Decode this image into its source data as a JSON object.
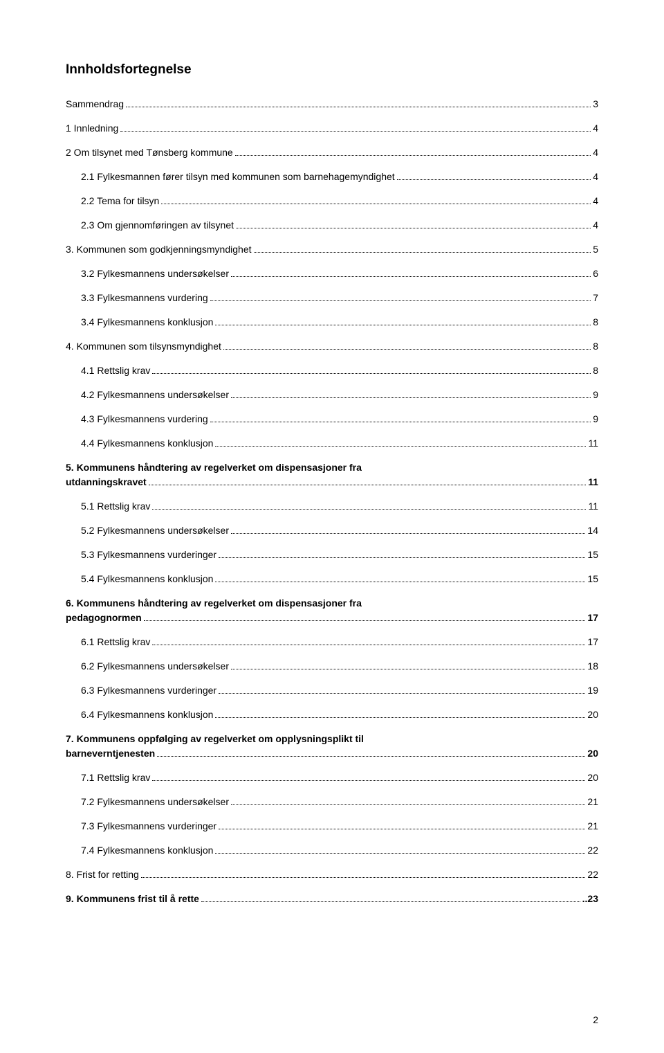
{
  "document": {
    "title": "Innholdsfortegnelse",
    "page_number": "2",
    "colors": {
      "background": "#ffffff",
      "text": "#000000",
      "dots": "#000000"
    },
    "typography": {
      "title_fontsize_pt": 14,
      "body_fontsize_pt": 11,
      "font_family": "Verdana"
    }
  },
  "toc": [
    {
      "label": "Sammendrag",
      "page": "3",
      "bold": false,
      "indent": 0
    },
    {
      "label": "1 Innledning",
      "page": "4",
      "bold": false,
      "indent": 0
    },
    {
      "label": "2 Om tilsynet med Tønsberg kommune",
      "page": "4",
      "bold": false,
      "indent": 0
    },
    {
      "label": "2.1 Fylkesmannen fører tilsyn med kommunen som barnehagemyndighet",
      "page": "4",
      "bold": false,
      "indent": 1
    },
    {
      "label": "2.2 Tema for tilsyn",
      "page": "4",
      "bold": false,
      "indent": 1
    },
    {
      "label": "2.3 Om gjennomføringen av tilsynet",
      "page": "4",
      "bold": false,
      "indent": 1
    },
    {
      "label": "3. Kommunen som godkjenningsmyndighet",
      "page": "5",
      "bold": false,
      "indent": 0
    },
    {
      "label": "3.2 Fylkesmannens undersøkelser",
      "page": "6",
      "bold": false,
      "indent": 1
    },
    {
      "label": "3.3 Fylkesmannens vurdering",
      "page": "7",
      "bold": false,
      "indent": 1
    },
    {
      "label": "3.4 Fylkesmannens konklusjon",
      "page": "8",
      "bold": false,
      "indent": 1
    },
    {
      "label": "4. Kommunen som tilsynsmyndighet",
      "page": "8",
      "bold": false,
      "indent": 0
    },
    {
      "label": "4.1 Rettslig krav",
      "page": "8",
      "bold": false,
      "indent": 1
    },
    {
      "label": "4.2 Fylkesmannens undersøkelser",
      "page": "9",
      "bold": false,
      "indent": 1
    },
    {
      "label": "4.3 Fylkesmannens vurdering",
      "page": "9",
      "bold": false,
      "indent": 1
    },
    {
      "label": "4.4 Fylkesmannens konklusjon",
      "page": "11",
      "bold": false,
      "indent": 1
    },
    {
      "label": "5. Kommunens håndtering av regelverket om dispensasjoner fra",
      "label2": "utdanningskravet",
      "page": "11",
      "bold": true,
      "indent": 0,
      "multiline": true
    },
    {
      "label": "5.1 Rettslig krav",
      "page": "11",
      "bold": false,
      "indent": 1
    },
    {
      "label": "5.2 Fylkesmannens undersøkelser",
      "page": "14",
      "bold": false,
      "indent": 1
    },
    {
      "label": "5.3 Fylkesmannens vurderinger",
      "page": "15",
      "bold": false,
      "indent": 1
    },
    {
      "label": "5.4 Fylkesmannens konklusjon",
      "page": "15",
      "bold": false,
      "indent": 1
    },
    {
      "label": "6. Kommunens håndtering av regelverket om dispensasjoner fra",
      "label2": "pedagognormen",
      "page": "17",
      "bold": true,
      "indent": 0,
      "multiline": true
    },
    {
      "label": "6.1 Rettslig krav",
      "page": "17",
      "bold": false,
      "indent": 1
    },
    {
      "label": "6.2 Fylkesmannens undersøkelser",
      "page": "18",
      "bold": false,
      "indent": 1
    },
    {
      "label": "6.3 Fylkesmannens vurderinger",
      "page": "19",
      "bold": false,
      "indent": 1
    },
    {
      "label": "6.4 Fylkesmannens konklusjon",
      "page": "20",
      "bold": false,
      "indent": 1
    },
    {
      "label": "7. Kommunens oppfølging av regelverket om opplysningsplikt til",
      "label2": "barneverntjenesten",
      "page": "20",
      "bold": true,
      "indent": 0,
      "multiline": true
    },
    {
      "label": "7.1 Rettslig krav",
      "page": "20",
      "bold": false,
      "indent": 1
    },
    {
      "label": "7.2 Fylkesmannens undersøkelser",
      "page": "21",
      "bold": false,
      "indent": 1
    },
    {
      "label": "7.3 Fylkesmannens vurderinger",
      "page": "21",
      "bold": false,
      "indent": 1
    },
    {
      "label": "7.4 Fylkesmannens konklusjon",
      "page": "22",
      "bold": false,
      "indent": 1
    },
    {
      "label": "8. Frist for retting",
      "page": "22",
      "bold": false,
      "indent": 0
    },
    {
      "label": "9. Kommunens frist til å rette",
      "page": "..23",
      "bold": true,
      "indent": 0,
      "tightdots": true
    }
  ]
}
